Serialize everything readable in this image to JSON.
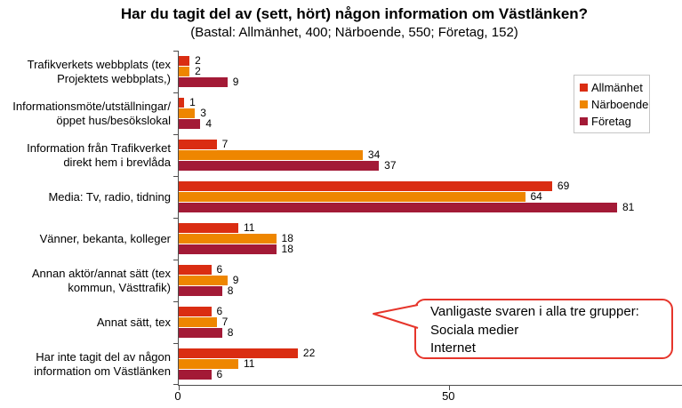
{
  "chart_data": {
    "type": "bar",
    "orientation": "horizontal",
    "title": "Har du tagit del av (sett, hört) någon information om Västlänken?",
    "subtitle": "(Bastal: Allmänhet, 400; Närboende, 550; Företag, 152)",
    "categories": [
      "Trafikverkets webbplats (tex\nProjektets webbplats,)",
      "Informationsmöte/utställningar/\nöppet hus/besökslokal",
      "Information från Trafikverket\ndirekt hem i brevlåda",
      "Media: Tv, radio, tidning",
      "Vänner, bekanta, kolleger",
      "Annan aktör/annat sätt (tex\nkommun, Västtrafik)",
      "Annat sätt, tex",
      "Har inte tagit del av någon\ninformation om Västlänken"
    ],
    "series": [
      {
        "key": "allmanhet",
        "name": "Allmänhet",
        "color": "#da2d12",
        "values": [
          2,
          1,
          7,
          69,
          11,
          6,
          6,
          22
        ]
      },
      {
        "key": "narboende",
        "name": "Närboende",
        "color": "#ee8600",
        "values": [
          2,
          3,
          34,
          64,
          18,
          9,
          7,
          11
        ]
      },
      {
        "key": "foretag",
        "name": "Företag",
        "color": "#a31a36",
        "values": [
          9,
          4,
          37,
          81,
          18,
          8,
          8,
          6
        ]
      }
    ],
    "xlim": [
      0,
      93
    ],
    "x_ticks": [
      0,
      50
    ],
    "grid": false,
    "legend_position": "upper-right",
    "value_labels": true
  },
  "callout": {
    "lines": [
      "Vanligaste svaren i alla tre grupper:",
      "Sociala medier",
      "Internet"
    ]
  },
  "colors": {
    "axis": "#4d4d4d",
    "callout_border": "#e6352b",
    "legend_border": "#c6c6c6",
    "background": "#ffffff"
  }
}
